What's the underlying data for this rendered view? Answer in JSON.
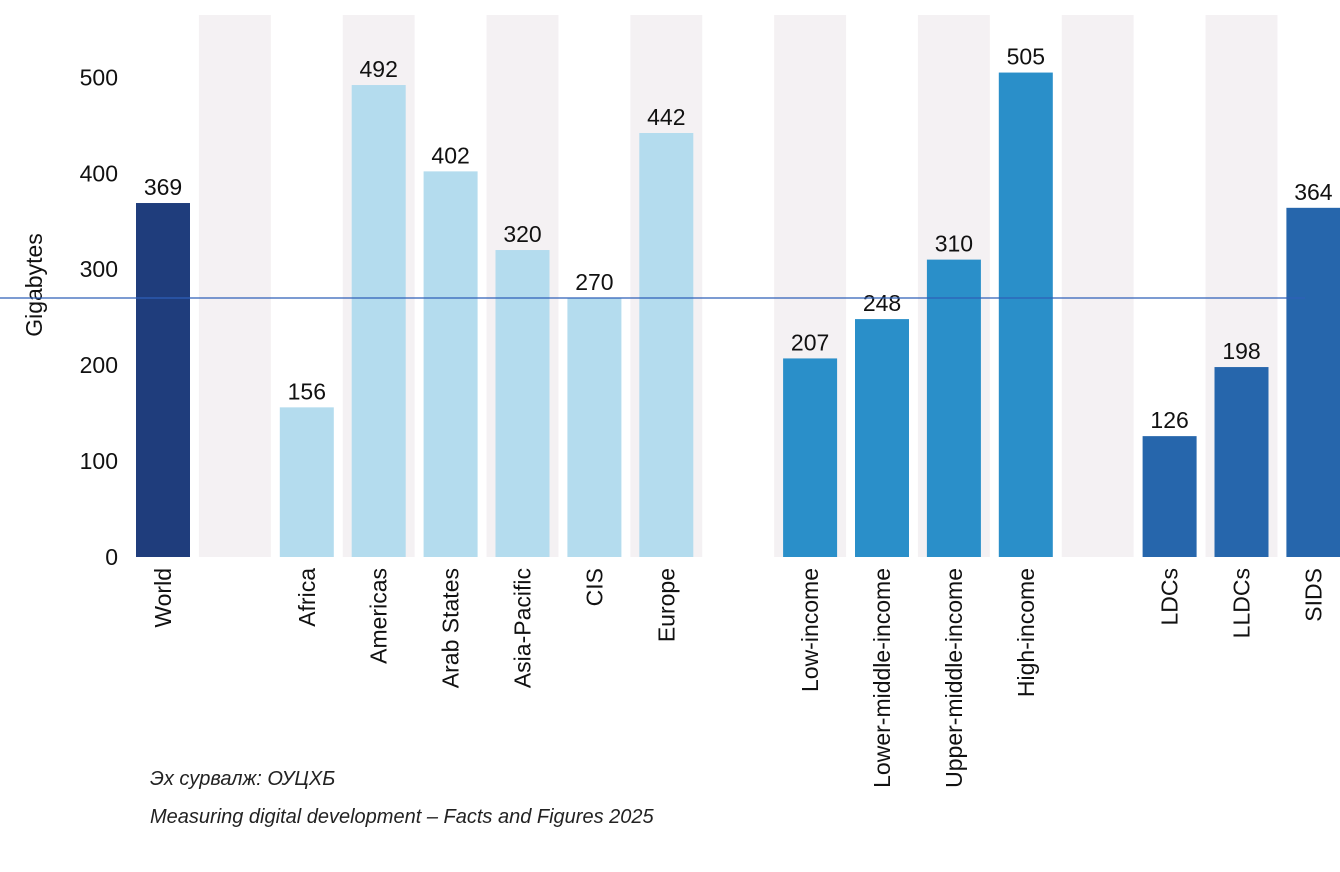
{
  "chart_data": {
    "type": "bar",
    "y_label": "Gigabytes",
    "categories": [
      "World",
      null,
      "Africa",
      "Americas",
      "Arab States",
      "Asia-Pacific",
      "CIS",
      "Europe",
      null,
      "Low-income",
      "Lower-middle-income",
      "Upper-middle-income",
      "High-income",
      null,
      "LDCs",
      "LLDCs",
      "SIDS"
    ],
    "values": [
      369,
      null,
      156,
      492,
      402,
      320,
      270,
      442,
      null,
      207,
      248,
      310,
      505,
      null,
      126,
      198,
      364
    ],
    "colors": [
      "#1f3d7c",
      null,
      "#b4dcee",
      "#b4dcee",
      "#b4dcee",
      "#b4dcee",
      "#b4dcee",
      "#b4dcee",
      null,
      "#2a8fc9",
      "#2a8fc9",
      "#2a8fc9",
      "#2a8fc9",
      null,
      "#2666ac",
      "#2666ac",
      "#2666ac"
    ],
    "ylim": [
      0,
      565
    ],
    "yticks": [
      0,
      100,
      200,
      300,
      400,
      500
    ],
    "grid": false,
    "reference_line": 270,
    "source": [
      "Эх сурвалж: ОУЦХБ",
      "Measuring digital development – Facts and Figures 2025"
    ]
  }
}
